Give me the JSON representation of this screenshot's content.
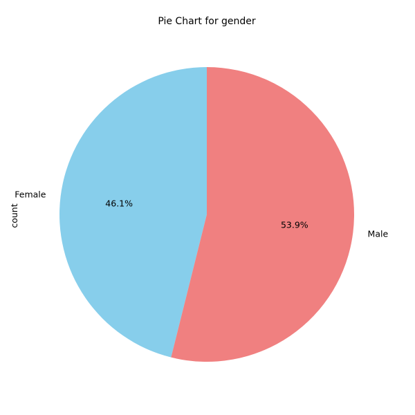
{
  "chart_data": {
    "type": "pie",
    "title": "Pie Chart for gender",
    "ylabel": "count",
    "start_angle_deg": 90,
    "direction": "counterclockwise",
    "slices": [
      {
        "label": "Female",
        "percent": 46.1,
        "percent_label": "46.1%",
        "color": "#87ceeb"
      },
      {
        "label": "Male",
        "percent": 53.9,
        "percent_label": "53.9%",
        "color": "#f08080"
      }
    ]
  }
}
